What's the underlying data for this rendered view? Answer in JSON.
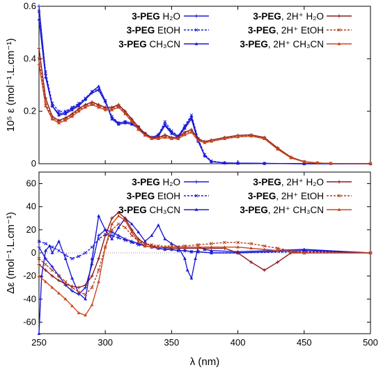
{
  "chart_data": [
    {
      "type": "line",
      "panel": "absorption",
      "ylabel": "10⁵ ε (mol⁻¹.L.cm⁻¹)",
      "xlim": [
        250,
        500
      ],
      "ylim": [
        0,
        0.6
      ],
      "yticks": [
        "0",
        "0.2",
        "0.4",
        "0.6"
      ],
      "grid": false,
      "legend": "top",
      "series": [
        {
          "name": "3-PEG H2O",
          "legend_bold": "3-PEG",
          "legend_rest": "H₂O",
          "color": "#1a1ad6",
          "marker": "plus",
          "x": [
            250,
            255,
            260,
            265,
            270,
            275,
            280,
            285,
            290,
            295,
            300,
            305,
            310,
            315,
            320,
            325,
            330,
            335,
            340,
            345,
            350,
            355,
            360,
            365,
            370,
            375,
            380,
            390,
            400,
            420,
            450,
            500
          ],
          "y": [
            0.6,
            0.34,
            0.22,
            0.19,
            0.195,
            0.21,
            0.225,
            0.245,
            0.27,
            0.28,
            0.235,
            0.175,
            0.155,
            0.16,
            0.155,
            0.14,
            0.115,
            0.1,
            0.11,
            0.15,
            0.12,
            0.105,
            0.14,
            0.18,
            0.09,
            0.03,
            0.008,
            0.003,
            0.002,
            0.001,
            0,
            0
          ]
        },
        {
          "name": "3-PEG EtOH",
          "legend_bold": "3-PEG",
          "legend_rest": "EtOH",
          "color": "#1a1ad6",
          "marker": "x",
          "x": [
            250,
            255,
            260,
            265,
            270,
            275,
            280,
            285,
            290,
            295,
            300,
            305,
            310,
            315,
            320,
            325,
            330,
            335,
            340,
            345,
            350,
            355,
            360,
            365,
            370,
            375,
            380,
            390,
            400,
            420,
            450,
            500
          ],
          "y": [
            0.58,
            0.35,
            0.23,
            0.2,
            0.2,
            0.215,
            0.23,
            0.25,
            0.275,
            0.285,
            0.24,
            0.18,
            0.155,
            0.16,
            0.155,
            0.14,
            0.115,
            0.1,
            0.11,
            0.16,
            0.125,
            0.105,
            0.145,
            0.185,
            0.095,
            0.035,
            0.01,
            0.003,
            0.002,
            0.001,
            0,
            0
          ]
        },
        {
          "name": "3-PEG CH3CN",
          "legend_bold": "3-PEG",
          "legend_rest": "CH₃CN",
          "color": "#1a1ad6",
          "marker": "triangle",
          "x": [
            250,
            255,
            260,
            265,
            270,
            275,
            280,
            285,
            290,
            295,
            300,
            305,
            310,
            315,
            320,
            325,
            330,
            335,
            340,
            345,
            350,
            355,
            360,
            365,
            370,
            375,
            380,
            390,
            400,
            420,
            450,
            500
          ],
          "y": [
            0.55,
            0.33,
            0.22,
            0.185,
            0.19,
            0.205,
            0.22,
            0.245,
            0.275,
            0.295,
            0.24,
            0.17,
            0.15,
            0.155,
            0.15,
            0.135,
            0.11,
            0.095,
            0.105,
            0.145,
            0.115,
            0.1,
            0.135,
            0.17,
            0.085,
            0.03,
            0.008,
            0.003,
            0.002,
            0.001,
            0,
            0
          ]
        },
        {
          "name": "3-PEG, 2H+ H2O",
          "legend_bold": "3-PEG",
          "legend_rest": ", 2H⁺ H₂O",
          "color": "#8b1a1a",
          "marker": "plus",
          "x": [
            250,
            255,
            260,
            265,
            270,
            275,
            280,
            285,
            290,
            295,
            300,
            305,
            310,
            315,
            320,
            325,
            330,
            335,
            340,
            345,
            350,
            355,
            360,
            365,
            370,
            375,
            380,
            390,
            400,
            410,
            420,
            430,
            440,
            450,
            460,
            470,
            500
          ],
          "y": [
            0.44,
            0.25,
            0.18,
            0.165,
            0.175,
            0.19,
            0.21,
            0.225,
            0.235,
            0.225,
            0.215,
            0.215,
            0.225,
            0.2,
            0.17,
            0.14,
            0.115,
            0.1,
            0.1,
            0.11,
            0.1,
            0.1,
            0.12,
            0.13,
            0.095,
            0.085,
            0.09,
            0.1,
            0.108,
            0.11,
            0.1,
            0.06,
            0.025,
            0.008,
            0.003,
            0.001,
            0
          ]
        },
        {
          "name": "3-PEG, 2H+ EtOH",
          "legend_bold": "3-PEG",
          "legend_rest": ", 2H⁺ EtOH",
          "color": "#b03a1a",
          "marker": "x",
          "x": [
            250,
            255,
            260,
            265,
            270,
            275,
            280,
            285,
            290,
            295,
            300,
            305,
            310,
            315,
            320,
            325,
            330,
            335,
            340,
            345,
            350,
            355,
            360,
            365,
            370,
            375,
            380,
            390,
            400,
            410,
            420,
            430,
            440,
            450,
            460,
            470,
            500
          ],
          "y": [
            0.4,
            0.23,
            0.175,
            0.16,
            0.17,
            0.185,
            0.205,
            0.22,
            0.23,
            0.22,
            0.21,
            0.21,
            0.22,
            0.195,
            0.165,
            0.135,
            0.11,
            0.098,
            0.098,
            0.105,
            0.098,
            0.098,
            0.115,
            0.125,
            0.09,
            0.082,
            0.088,
            0.098,
            0.105,
            0.108,
            0.098,
            0.058,
            0.023,
            0.007,
            0.003,
            0.001,
            0
          ]
        },
        {
          "name": "3-PEG, 2H+ CH3CN",
          "legend_bold": "3-PEG",
          "legend_rest": ", 2H⁺ CH₃CN",
          "color": "#c8461e",
          "marker": "triangle",
          "x": [
            250,
            255,
            260,
            265,
            270,
            275,
            280,
            285,
            290,
            295,
            300,
            305,
            310,
            315,
            320,
            325,
            330,
            335,
            340,
            345,
            350,
            355,
            360,
            365,
            370,
            375,
            380,
            390,
            400,
            410,
            420,
            430,
            440,
            450,
            460,
            470,
            500
          ],
          "y": [
            0.38,
            0.22,
            0.17,
            0.155,
            0.165,
            0.18,
            0.2,
            0.215,
            0.225,
            0.215,
            0.205,
            0.205,
            0.215,
            0.19,
            0.16,
            0.13,
            0.108,
            0.095,
            0.095,
            0.1,
            0.095,
            0.095,
            0.11,
            0.12,
            0.088,
            0.08,
            0.085,
            0.095,
            0.102,
            0.105,
            0.095,
            0.055,
            0.022,
            0.007,
            0.003,
            0.001,
            0
          ]
        }
      ]
    },
    {
      "type": "line",
      "panel": "cd",
      "ylabel": "Δε (mol⁻¹.L.cm⁻¹)",
      "xlabel": "λ  (nm)",
      "xlim": [
        250,
        500
      ],
      "ylim": [
        -70,
        70
      ],
      "xticks": [
        "250",
        "300",
        "350",
        "400",
        "450",
        "500"
      ],
      "yticks": [
        "60",
        "40",
        "20",
        "0",
        "-20",
        "-40",
        "-60"
      ],
      "zero_line": true,
      "grid": false,
      "legend": "top",
      "series": [
        {
          "name": "3-PEG H2O",
          "legend_bold": "3-PEG",
          "legend_rest": "H₂O",
          "color": "#1a1ad6",
          "marker": "plus",
          "x": [
            250,
            255,
            260,
            265,
            270,
            275,
            280,
            285,
            290,
            295,
            300,
            305,
            310,
            315,
            320,
            325,
            330,
            335,
            340,
            345,
            350,
            355,
            360,
            365,
            370,
            380,
            400,
            450,
            500
          ],
          "y": [
            5,
            -5,
            -12,
            -20,
            -28,
            -33,
            -36,
            -30,
            -10,
            15,
            20,
            18,
            15,
            12,
            10,
            8,
            6,
            5,
            4,
            3,
            3,
            2,
            2,
            1,
            1,
            0,
            0,
            2,
            0
          ]
        },
        {
          "name": "3-PEG EtOH",
          "legend_bold": "3-PEG",
          "legend_rest": "EtOH",
          "color": "#1a1ad6",
          "marker": "x",
          "x": [
            250,
            255,
            260,
            265,
            270,
            275,
            280,
            285,
            290,
            295,
            300,
            305,
            310,
            315,
            320,
            325,
            330,
            335,
            340,
            345,
            350,
            355,
            360,
            365,
            370,
            380,
            400,
            450,
            500
          ],
          "y": [
            10,
            8,
            5,
            2,
            -2,
            -5,
            -3,
            0,
            5,
            12,
            16,
            15,
            13,
            11,
            9,
            7,
            6,
            5,
            4,
            3,
            3,
            2,
            2,
            1,
            1,
            0,
            0,
            1,
            0
          ]
        },
        {
          "name": "3-PEG CH3CN",
          "legend_bold": "3-PEG",
          "legend_rest": "CH₃CN",
          "color": "#1a1ad6",
          "marker": "triangle",
          "x": [
            250,
            252,
            255,
            258,
            260,
            265,
            270,
            275,
            280,
            285,
            290,
            295,
            300,
            305,
            310,
            315,
            320,
            325,
            330,
            335,
            340,
            345,
            350,
            355,
            360,
            362,
            365,
            368,
            370,
            375,
            380,
            400,
            450,
            500
          ],
          "y": [
            -70,
            -20,
            2,
            6,
            0,
            10,
            -5,
            -22,
            -35,
            -40,
            -5,
            32,
            20,
            12,
            22,
            30,
            25,
            18,
            10,
            15,
            24,
            12,
            8,
            5,
            -5,
            -15,
            -22,
            -5,
            5,
            3,
            2,
            1,
            3,
            0
          ]
        },
        {
          "name": "3-PEG, 2H+ H2O",
          "legend_bold": "3-PEG",
          "legend_rest": ", 2H⁺ H₂O",
          "color": "#8b1a1a",
          "marker": "plus",
          "x": [
            250,
            255,
            260,
            265,
            270,
            275,
            280,
            285,
            290,
            295,
            300,
            305,
            310,
            315,
            320,
            325,
            330,
            335,
            340,
            350,
            360,
            370,
            380,
            390,
            400,
            410,
            420,
            430,
            440,
            450,
            500
          ],
          "y": [
            -10,
            -15,
            -20,
            -24,
            -27,
            -29,
            -30,
            -28,
            -20,
            -5,
            15,
            30,
            35,
            30,
            20,
            12,
            8,
            6,
            5,
            4,
            4,
            4,
            4,
            4,
            0,
            -8,
            -15,
            -8,
            0,
            0,
            0
          ]
        },
        {
          "name": "3-PEG, 2H+ EtOH",
          "legend_bold": "3-PEG",
          "legend_rest": ", 2H⁺ EtOH",
          "color": "#b03a1a",
          "marker": "x",
          "x": [
            250,
            255,
            260,
            265,
            270,
            275,
            280,
            285,
            290,
            295,
            300,
            305,
            310,
            315,
            320,
            325,
            330,
            335,
            340,
            350,
            360,
            370,
            380,
            390,
            400,
            410,
            420,
            430,
            440,
            450,
            500
          ],
          "y": [
            -5,
            -10,
            -15,
            -20,
            -25,
            -30,
            -34,
            -36,
            -30,
            -15,
            5,
            20,
            25,
            22,
            15,
            10,
            8,
            7,
            6,
            6,
            6,
            7,
            8,
            9,
            9,
            8,
            6,
            4,
            2,
            0,
            0
          ]
        },
        {
          "name": "3-PEG, 2H+ CH3CN",
          "legend_bold": "3-PEG",
          "legend_rest": ", 2H⁺ CH₃CN",
          "color": "#c8461e",
          "marker": "triangle",
          "x": [
            250,
            255,
            260,
            265,
            270,
            275,
            280,
            285,
            290,
            295,
            300,
            305,
            310,
            315,
            320,
            325,
            330,
            335,
            340,
            350,
            360,
            370,
            380,
            390,
            400,
            410,
            420,
            430,
            440,
            450,
            500
          ],
          "y": [
            -20,
            -25,
            -30,
            -35,
            -40,
            -46,
            -52,
            -54,
            -45,
            -25,
            5,
            25,
            32,
            28,
            18,
            10,
            6,
            5,
            5,
            5,
            5,
            5,
            5,
            5,
            5,
            4,
            3,
            2,
            1,
            0,
            0
          ]
        }
      ]
    }
  ]
}
